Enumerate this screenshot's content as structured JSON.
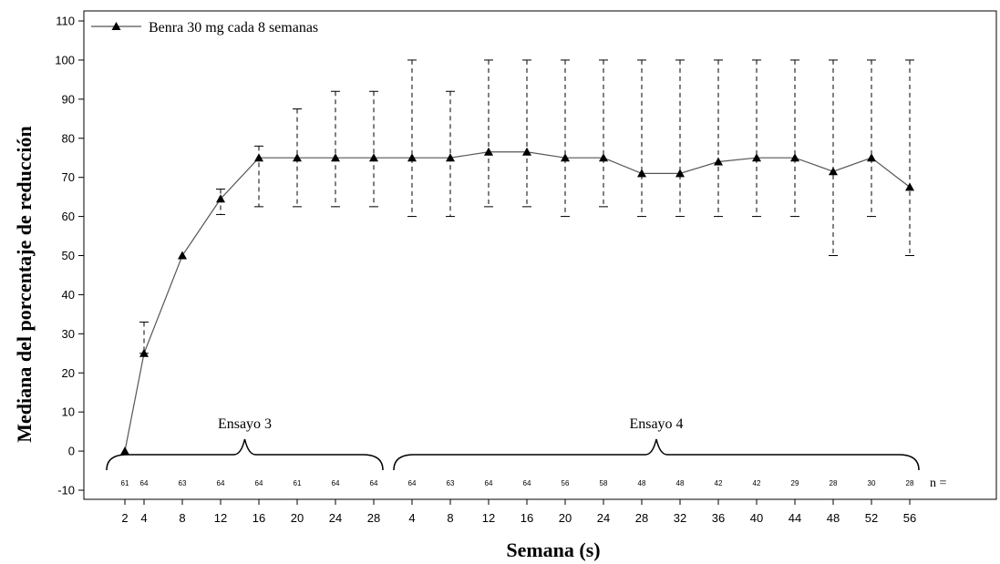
{
  "chart_data": {
    "type": "line",
    "ylabel": "Mediana del porcentaje de reducción",
    "xlabel": "Semana (s)",
    "ylim": [
      -10,
      110
    ],
    "yticks": [
      -10,
      0,
      10,
      20,
      30,
      40,
      50,
      60,
      70,
      80,
      90,
      100,
      110
    ],
    "legend_position": "top-left",
    "series": [
      {
        "name": "Benra 30 mg cada 8 semanas",
        "x": [
          "2",
          "4",
          "8",
          "12",
          "16",
          "20",
          "24",
          "28",
          "4",
          "8",
          "12",
          "16",
          "20",
          "24",
          "28",
          "32",
          "36",
          "40",
          "44",
          "48",
          "52",
          "56"
        ],
        "values": [
          0,
          25,
          50,
          64.5,
          75,
          75,
          75,
          75,
          75,
          75,
          76.5,
          76.5,
          75,
          75,
          71,
          71,
          74,
          75,
          75,
          71.5,
          75,
          67.5
        ],
        "err_low": [
          null,
          25,
          null,
          60.5,
          62.5,
          62.5,
          62.5,
          62.5,
          60,
          60,
          62.5,
          62.5,
          60,
          62.5,
          60,
          60,
          60,
          60,
          60,
          50,
          60,
          50
        ],
        "err_high": [
          null,
          33,
          null,
          67,
          78,
          87.5,
          92,
          92,
          100,
          92,
          100,
          100,
          100,
          100,
          100,
          100,
          100,
          100,
          100,
          100,
          100,
          100
        ]
      }
    ],
    "n_label": "n =",
    "n_values": [
      "61",
      "64",
      "63",
      "64",
      "64",
      "61",
      "64",
      "64",
      "64",
      "63",
      "64",
      "64",
      "56",
      "58",
      "48",
      "48",
      "42",
      "42",
      "29",
      "28",
      "30",
      "28"
    ],
    "groups": [
      {
        "label": "Ensayo 3",
        "from": 0,
        "to": 7
      },
      {
        "label": "Ensayo 4",
        "from": 8,
        "to": 21
      }
    ],
    "grid": false
  }
}
